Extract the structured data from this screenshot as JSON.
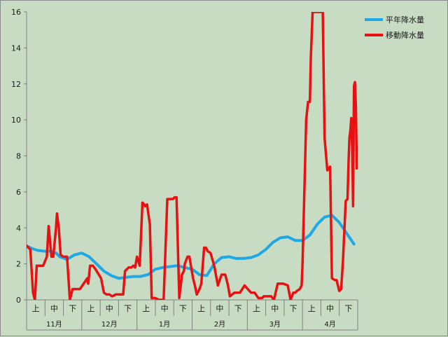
{
  "colors": {
    "background": "#c8dcc4",
    "axis": "#808080",
    "normal": "#1ea8e6",
    "moving": "#e81010"
  },
  "chart_data": {
    "type": "line",
    "ylim": [
      0,
      16
    ],
    "y_ticks": [
      "0",
      "2",
      "4",
      "6",
      "8",
      "10",
      "12",
      "14",
      "16"
    ],
    "grid": false,
    "legend_position": "top-right",
    "x_range": [
      0,
      18
    ],
    "period_labels": [
      "上",
      "中",
      "下",
      "上",
      "中",
      "下",
      "上",
      "中",
      "下",
      "上",
      "中",
      "下",
      "上",
      "中",
      "下",
      "上",
      "中",
      "下"
    ],
    "month_labels": [
      "11月",
      "12月",
      "1月",
      "2月",
      "3月",
      "4月"
    ],
    "series": [
      {
        "name": "平年降水量",
        "color": "#1ea8e6",
        "x": [
          0,
          0.3,
          0.6,
          1,
          1.3,
          1.6,
          1.8,
          2.2,
          2.6,
          3,
          3.4,
          3.8,
          4.2,
          4.6,
          5,
          5.4,
          5.8,
          6.2,
          6.6,
          7,
          7.4,
          7.8,
          8.2,
          8.6,
          9,
          9.4,
          9.8,
          10.2,
          10.6,
          11,
          11.4,
          11.8,
          12.2,
          12.6,
          13,
          13.4,
          13.8,
          14.2,
          14.6,
          15,
          15.4,
          15.8,
          16.2,
          16.6,
          17,
          17.4,
          17.8
        ],
        "y": [
          3,
          2.85,
          2.75,
          2.7,
          2.7,
          2.6,
          2.4,
          2.25,
          2.5,
          2.6,
          2.4,
          2.0,
          1.6,
          1.35,
          1.2,
          1.25,
          1.3,
          1.3,
          1.4,
          1.7,
          1.8,
          1.85,
          1.9,
          1.8,
          1.7,
          1.4,
          1.35,
          2.0,
          2.35,
          2.4,
          2.3,
          2.3,
          2.35,
          2.5,
          2.8,
          3.2,
          3.45,
          3.5,
          3.3,
          3.3,
          3.6,
          4.2,
          4.6,
          4.7,
          4.3,
          3.7,
          3.1
        ]
      },
      {
        "name": "移動降水量",
        "color": "#e81010",
        "x": [
          0,
          0.2,
          0.35,
          0.45,
          0.55,
          0.7,
          0.9,
          1.1,
          1.2,
          1.35,
          1.45,
          1.6,
          1.65,
          1.75,
          1.85,
          2.0,
          2.1,
          2.2,
          2.35,
          2.5,
          2.7,
          2.75,
          2.9,
          3.1,
          3.3,
          3.35,
          3.45,
          3.6,
          3.75,
          4.05,
          4.2,
          4.35,
          4.5,
          4.65,
          4.85,
          5.05,
          5.25,
          5.35,
          5.55,
          5.7,
          5.8,
          5.9,
          6.0,
          6.15,
          6.3,
          6.4,
          6.45,
          6.55,
          6.7,
          6.8,
          6.9,
          7.0,
          7.2,
          7.45,
          7.65,
          7.8,
          7.95,
          8.05,
          8.15,
          8.3,
          8.45,
          8.55,
          8.6,
          8.75,
          8.85,
          9.05,
          9.15,
          9.25,
          9.4,
          9.5,
          9.65,
          9.75,
          9.85,
          10.0,
          10.2,
          10.4,
          10.6,
          10.8,
          10.95,
          11.05,
          11.3,
          11.45,
          11.6,
          11.85,
          12.2,
          12.4,
          12.6,
          12.8,
          12.9,
          13.0,
          13.3,
          13.45,
          13.65,
          13.75,
          13.95,
          14.2,
          14.35,
          14.5,
          14.6,
          14.7,
          14.85,
          14.95,
          15.0,
          15.2,
          15.3,
          15.4,
          15.45,
          15.55,
          15.7,
          15.85,
          16.0,
          16.1,
          16.2,
          16.35,
          16.5,
          16.6,
          16.75,
          16.85,
          17.0,
          17.1,
          17.2,
          17.35,
          17.45,
          17.5,
          17.55,
          17.6,
          17.65,
          17.7,
          17.75,
          17.8,
          17.85,
          17.9,
          17.95,
          18.0
        ],
        "y": [
          3.0,
          2.8,
          0.4,
          0.0,
          1.9,
          1.9,
          1.9,
          2.4,
          4.1,
          2.4,
          2.4,
          4.0,
          4.8,
          4.0,
          2.5,
          2.4,
          2.4,
          2.4,
          0.0,
          0.6,
          0.6,
          0.6,
          0.6,
          0.9,
          1.2,
          0.9,
          1.9,
          1.9,
          1.7,
          1.2,
          0.4,
          0.3,
          0.3,
          0.2,
          0.3,
          0.3,
          0.3,
          1.6,
          1.8,
          1.8,
          1.9,
          1.8,
          2.4,
          1.9,
          5.4,
          5.3,
          5.2,
          5.3,
          4.2,
          0.1,
          0.1,
          0.1,
          0.0,
          0.0,
          5.6,
          5.6,
          5.6,
          5.7,
          5.7,
          0.1,
          1.4,
          1.6,
          2.0,
          2.4,
          2.4,
          1.2,
          0.8,
          0.3,
          0.6,
          0.9,
          2.9,
          2.9,
          2.7,
          2.6,
          1.9,
          0.8,
          1.4,
          1.4,
          0.8,
          0.2,
          0.4,
          0.4,
          0.4,
          0.8,
          0.4,
          0.4,
          0.1,
          0.1,
          0.2,
          0.2,
          0.2,
          0.0,
          0.9,
          0.9,
          0.9,
          0.8,
          0.0,
          0.4,
          0.4,
          0.5,
          0.6,
          0.8,
          2.0,
          10.0,
          11.0,
          11.0,
          13.4,
          16.0,
          16.0,
          16.0,
          16.0,
          16.0,
          9.0,
          7.2,
          7.4,
          1.2,
          1.1,
          1.1,
          0.5,
          0.6,
          2.2,
          5.5,
          5.6,
          7.6,
          9.0,
          9.4,
          10.1,
          8.5,
          5.2,
          11.9,
          12.1,
          10.7,
          7.3,
          7.5
        ]
      }
    ]
  }
}
